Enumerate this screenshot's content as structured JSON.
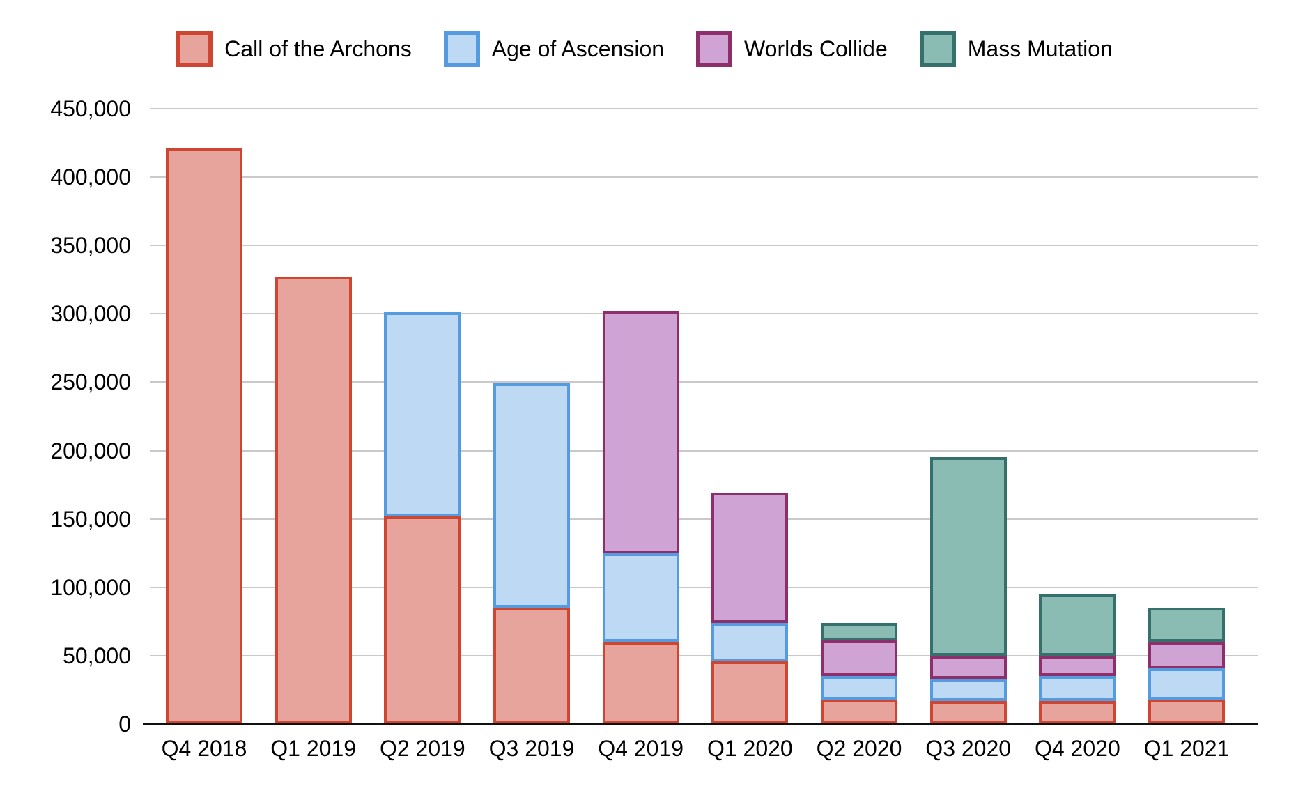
{
  "chart_data": {
    "type": "bar",
    "stacked": true,
    "categories": [
      "Q4 2018",
      "Q1 2019",
      "Q2 2019",
      "Q3 2019",
      "Q4 2019",
      "Q1 2020",
      "Q2 2020",
      "Q3 2020",
      "Q4 2020",
      "Q1 2021"
    ],
    "series": [
      {
        "name": "Call of the Archons",
        "fill": "#E7A49C",
        "border": "#CE4631",
        "values": [
          421000,
          327000,
          152000,
          85000,
          60000,
          46000,
          18000,
          17000,
          17000,
          18000
        ]
      },
      {
        "name": "Age of Ascension",
        "fill": "#BDD9F4",
        "border": "#549BE0",
        "values": [
          0,
          0,
          149000,
          164000,
          65000,
          28000,
          17000,
          16000,
          18000,
          23000
        ]
      },
      {
        "name": "Worlds Collide",
        "fill": "#CFA3D4",
        "border": "#8E2F6B",
        "values": [
          0,
          0,
          0,
          0,
          177000,
          95000,
          26000,
          17000,
          15000,
          19000
        ]
      },
      {
        "name": "Mass Mutation",
        "fill": "#8ABCB4",
        "border": "#35706C",
        "values": [
          0,
          0,
          0,
          0,
          0,
          0,
          13000,
          145000,
          45000,
          25000
        ]
      }
    ],
    "ylim": [
      0,
      450000
    ],
    "ytick_step": 50000,
    "ytick_labels": [
      "0",
      "50,000",
      "100,000",
      "150,000",
      "200,000",
      "250,000",
      "300,000",
      "350,000",
      "400,000",
      "450,000"
    ],
    "grid": true,
    "legend_position": "top",
    "title": "",
    "xlabel": "",
    "ylabel": ""
  },
  "colors": {
    "background": "#FFFFFF",
    "gridline": "#C9C9C9",
    "axis_line": "#111111",
    "text": "#000000"
  }
}
